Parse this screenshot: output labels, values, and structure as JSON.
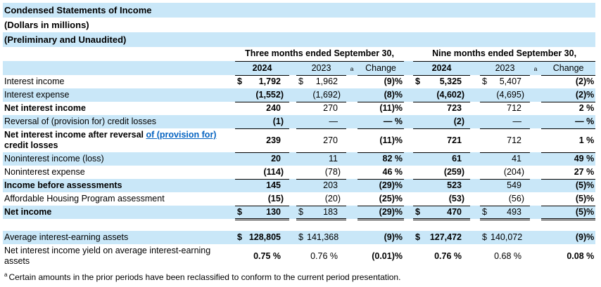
{
  "colors": {
    "row_shade": "#C9E7F8",
    "link_blue": "#0563C1",
    "text": "#000000"
  },
  "titles": [
    "Condensed Statements of Income",
    "(Dollars in millions)",
    "(Preliminary and Unaudited)"
  ],
  "header": {
    "three_months": "Three months ended September 30,",
    "nine_months": "Nine months ended September 30,",
    "col_2024": "2024",
    "col_2023": "2023",
    "footnote_marker": "a",
    "col_change": "Change"
  },
  "rows": [
    {
      "name": "interest-income",
      "label": "Interest income",
      "bold": false,
      "shaded": false,
      "underline": "none",
      "tm": {
        "s24": "$",
        "v24": "1,792",
        "s23": "$",
        "v23": "1,962",
        "chg": "(9)%"
      },
      "nm": {
        "s24": "$",
        "v24": "5,325",
        "s23": "$",
        "v23": "5,407",
        "chg": "(2)%"
      }
    },
    {
      "name": "interest-expense",
      "label": "Interest expense",
      "bold": false,
      "shaded": true,
      "underline": "single",
      "tm": {
        "v24": "(1,552)",
        "v23": "(1,692)",
        "chg": "(8)%"
      },
      "nm": {
        "v24": "(4,602)",
        "v23": "(4,695)",
        "chg": "(2)%"
      }
    },
    {
      "name": "net-interest-income",
      "label": "Net interest income",
      "bold": true,
      "shaded": false,
      "underline": "none",
      "tm": {
        "v24": "240",
        "v23": "270",
        "chg": "(11)%"
      },
      "nm": {
        "v24": "723",
        "v23": "712",
        "chg": "2 %"
      }
    },
    {
      "name": "reversal-of-provision-for-credit-losses",
      "label": "Reversal of (provision for) credit losses",
      "bold": false,
      "shaded": true,
      "underline": "single",
      "tm": {
        "v24": "(1)",
        "v23": "—",
        "chg": "— %"
      },
      "nm": {
        "v24": "(2)",
        "v23": "—",
        "chg": "— %"
      }
    },
    {
      "name": "net-interest-income-after-reversal",
      "bold": true,
      "shaded": false,
      "underline": "single",
      "label_parts": {
        "prefix": "Net interest income after reversal ",
        "link": "of (provision for)",
        "line2": "credit losses"
      },
      "tm": {
        "v24": "239",
        "v23": "270",
        "chg": "(11)%"
      },
      "nm": {
        "v24": "721",
        "v23": "712",
        "chg": "1 %"
      }
    },
    {
      "name": "noninterest-income-loss",
      "label": "Noninterest income (loss)",
      "bold": false,
      "shaded": true,
      "underline": "none",
      "tm": {
        "v24": "20",
        "v23": "11",
        "chg": "82 %"
      },
      "nm": {
        "v24": "61",
        "v23": "41",
        "chg": "49 %"
      }
    },
    {
      "name": "noninterest-expense",
      "label": "Noninterest expense",
      "bold": false,
      "shaded": false,
      "underline": "single",
      "tm": {
        "v24": "(114)",
        "v23": "(78)",
        "chg": "46 %"
      },
      "nm": {
        "v24": "(259)",
        "v23": "(204)",
        "chg": "27 %"
      }
    },
    {
      "name": "income-before-assessments",
      "label": "Income before assessments",
      "bold": true,
      "shaded": true,
      "underline": "none",
      "tm": {
        "v24": "145",
        "v23": "203",
        "chg": "(29)%"
      },
      "nm": {
        "v24": "523",
        "v23": "549",
        "chg": "(5)%"
      }
    },
    {
      "name": "affordable-housing-program-assessment",
      "label": "Affordable Housing Program assessment",
      "bold": false,
      "shaded": false,
      "underline": "single",
      "tm": {
        "v24": "(15)",
        "v23": "(20)",
        "chg": "(25)%"
      },
      "nm": {
        "v24": "(53)",
        "v23": "(56)",
        "chg": "(5)%"
      }
    },
    {
      "name": "net-income",
      "label": "Net income",
      "bold": true,
      "shaded": true,
      "underline": "double",
      "tm": {
        "s24": "$",
        "v24": "130",
        "s23": "$",
        "v23": "183",
        "chg": "(29)%"
      },
      "nm": {
        "s24": "$",
        "v24": "470",
        "s23": "$",
        "v23": "493",
        "chg": "(5)%"
      }
    }
  ],
  "supplemental_rows": [
    {
      "name": "average-interest-earning-assets",
      "label": "Average interest-earning assets",
      "bold": false,
      "shaded": true,
      "underline": "none",
      "tm": {
        "s24": "$",
        "v24": "128,805",
        "s23": "$",
        "v23": "141,368",
        "chg": "(9)%"
      },
      "nm": {
        "s24": "$",
        "v24": "127,472",
        "s23": "$",
        "v23": "140,072",
        "chg": "(9)%"
      }
    },
    {
      "name": "net-interest-income-yield",
      "label": "Net interest income yield on average interest-earning assets",
      "bold": false,
      "shaded": false,
      "underline": "none",
      "tm": {
        "v24": "0.75 %",
        "v23": "0.76 %",
        "chg": "(0.01)%"
      },
      "nm": {
        "v24": "0.76 %",
        "v23": "0.68 %",
        "chg": "0.08 %"
      }
    }
  ],
  "footnote": {
    "marker": "a",
    "text": "Certain amounts in the prior periods have been reclassified to conform to the current period presentation."
  }
}
